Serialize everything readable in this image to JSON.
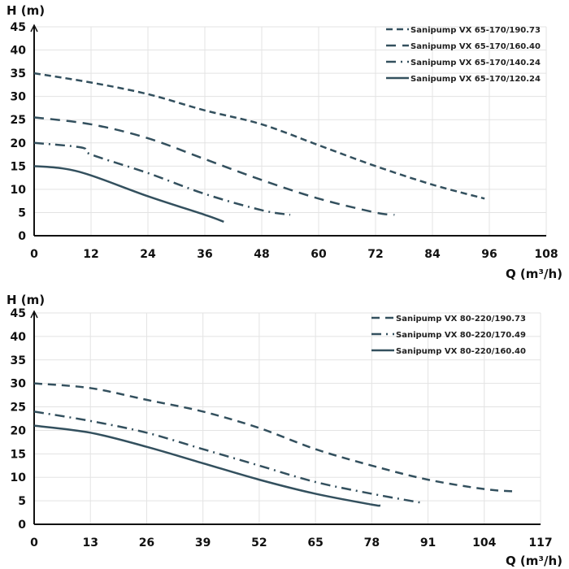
{
  "colors": {
    "line": "#33505e",
    "axis": "#111111",
    "grid": "#e3e3e3"
  },
  "chart_data": [
    {
      "type": "line",
      "xlabel": "Q (m³/h)",
      "ylabel": "H (m)",
      "xlim": [
        0,
        108
      ],
      "ylim": [
        0,
        45
      ],
      "xticks": [
        "0",
        "12",
        "24",
        "36",
        "48",
        "60",
        "72",
        "84",
        "96",
        "108"
      ],
      "yticks": [
        "0",
        "5",
        "10",
        "15",
        "20",
        "25",
        "30",
        "35",
        "40",
        "45"
      ],
      "grid": true,
      "legend_position": "top-right",
      "series": [
        {
          "name": "Sanipump VX 65-170/190.73",
          "dash": "8,5",
          "x": [
            0,
            12,
            24,
            36,
            48,
            60,
            72,
            84,
            95
          ],
          "y": [
            35,
            33,
            30.5,
            27,
            24,
            19.5,
            15,
            11,
            8
          ]
        },
        {
          "name": "Sanipump VX 65-170/160.40",
          "dash": "12,8",
          "x": [
            0,
            12,
            24,
            36,
            48,
            60,
            72,
            76
          ],
          "y": [
            25.5,
            24,
            21,
            16.5,
            12,
            8,
            5,
            4.5
          ]
        },
        {
          "name": "Sanipump VX 65-170/140.24",
          "dash": "12,6,2,6",
          "x": [
            0,
            10,
            12,
            24,
            36,
            48,
            54
          ],
          "y": [
            20,
            19,
            17.5,
            13.5,
            9,
            5.5,
            4.5
          ]
        },
        {
          "name": "Sanipump VX 65-170/120.24",
          "dash": "",
          "x": [
            0,
            6,
            12,
            24,
            36,
            40
          ],
          "y": [
            15,
            14.5,
            13,
            8.5,
            4.5,
            3
          ]
        }
      ]
    },
    {
      "type": "line",
      "xlabel": "Q (m³/h)",
      "ylabel": "H (m)",
      "xlim": [
        0,
        117
      ],
      "ylim": [
        0,
        45
      ],
      "xticks": [
        "0",
        "13",
        "26",
        "39",
        "52",
        "65",
        "78",
        "91",
        "104",
        "117"
      ],
      "yticks": [
        "0",
        "5",
        "10",
        "15",
        "20",
        "25",
        "30",
        "35",
        "40",
        "45"
      ],
      "grid": true,
      "legend_position": "top-right",
      "series": [
        {
          "name": "Sanipump VX 80-220/190.73",
          "dash": "10,7",
          "x": [
            0,
            13,
            26,
            39,
            52,
            65,
            78,
            91,
            104,
            111
          ],
          "y": [
            30,
            29,
            26.5,
            24,
            20.5,
            16,
            12.5,
            9.5,
            7.5,
            7
          ]
        },
        {
          "name": "Sanipump VX 80-220/170.49",
          "dash": "12,6,2,6",
          "x": [
            0,
            13,
            26,
            39,
            52,
            65,
            78,
            90
          ],
          "y": [
            24,
            22,
            19.5,
            16,
            12.5,
            9,
            6.5,
            4.5
          ]
        },
        {
          "name": "Sanipump VX 80-220/160.40",
          "dash": "",
          "x": [
            0,
            13,
            26,
            39,
            52,
            65,
            78,
            80
          ],
          "y": [
            21,
            19.5,
            16.5,
            13,
            9.5,
            6.5,
            4.2,
            4
          ]
        }
      ]
    }
  ]
}
